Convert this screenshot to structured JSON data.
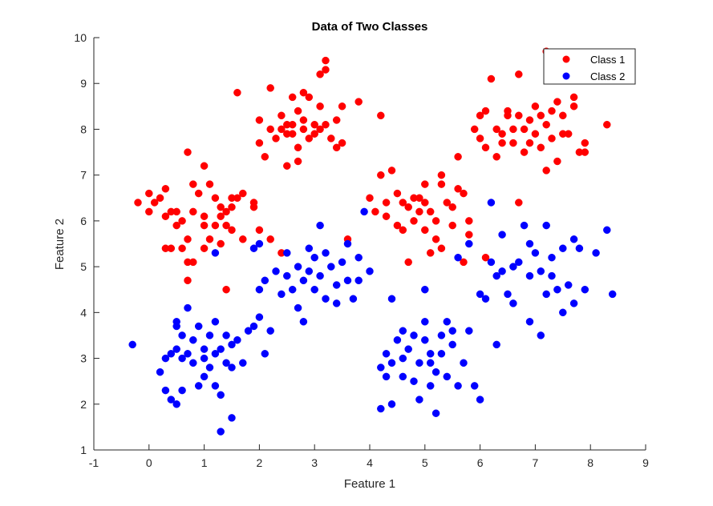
{
  "chart_data": {
    "type": "scatter",
    "title": "Data of Two Classes",
    "xlabel": "Feature 1",
    "ylabel": "Feature 2",
    "xlim": [
      -1,
      9
    ],
    "ylim": [
      1,
      10
    ],
    "xticks": [
      "-1",
      "0",
      "1",
      "2",
      "3",
      "4",
      "5",
      "6",
      "7",
      "8",
      "9"
    ],
    "yticks": [
      "1",
      "2",
      "3",
      "4",
      "5",
      "6",
      "7",
      "8",
      "9",
      "10"
    ],
    "grid": false,
    "legend": "top-right",
    "series": [
      {
        "name": "Class 1",
        "color": "#ff0000",
        "points": [
          [
            -0.2,
            6.4
          ],
          [
            0.0,
            6.2
          ],
          [
            0.0,
            6.6
          ],
          [
            0.1,
            6.4
          ],
          [
            0.2,
            6.5
          ],
          [
            0.3,
            6.1
          ],
          [
            0.3,
            6.7
          ],
          [
            0.3,
            5.4
          ],
          [
            0.4,
            6.2
          ],
          [
            0.4,
            5.4
          ],
          [
            0.5,
            6.2
          ],
          [
            0.5,
            5.9
          ],
          [
            0.6,
            5.4
          ],
          [
            0.6,
            6.0
          ],
          [
            0.7,
            7.5
          ],
          [
            0.7,
            5.1
          ],
          [
            0.7,
            4.7
          ],
          [
            0.7,
            5.6
          ],
          [
            0.8,
            6.2
          ],
          [
            0.8,
            6.8
          ],
          [
            0.8,
            5.1
          ],
          [
            0.9,
            6.6
          ],
          [
            1.0,
            6.1
          ],
          [
            1.0,
            7.2
          ],
          [
            1.0,
            5.4
          ],
          [
            1.0,
            5.9
          ],
          [
            1.1,
            6.8
          ],
          [
            1.1,
            5.6
          ],
          [
            1.2,
            6.5
          ],
          [
            1.2,
            5.9
          ],
          [
            1.3,
            6.3
          ],
          [
            1.3,
            6.1
          ],
          [
            1.3,
            5.5
          ],
          [
            1.4,
            6.2
          ],
          [
            1.4,
            4.5
          ],
          [
            1.4,
            5.9
          ],
          [
            1.5,
            6.5
          ],
          [
            1.5,
            6.3
          ],
          [
            1.5,
            5.8
          ],
          [
            1.6,
            8.8
          ],
          [
            1.6,
            6.5
          ],
          [
            1.7,
            5.6
          ],
          [
            1.7,
            6.6
          ],
          [
            1.9,
            6.4
          ],
          [
            1.9,
            6.3
          ],
          [
            2.0,
            5.8
          ],
          [
            2.2,
            5.6
          ],
          [
            2.0,
            7.7
          ],
          [
            2.0,
            8.2
          ],
          [
            2.1,
            7.4
          ],
          [
            2.2,
            8.9
          ],
          [
            2.2,
            8.0
          ],
          [
            2.3,
            7.8
          ],
          [
            2.4,
            8.3
          ],
          [
            2.4,
            8.0
          ],
          [
            2.5,
            8.1
          ],
          [
            2.5,
            7.9
          ],
          [
            2.5,
            7.2
          ],
          [
            2.6,
            8.1
          ],
          [
            2.6,
            7.9
          ],
          [
            2.6,
            8.7
          ],
          [
            2.7,
            8.4
          ],
          [
            2.7,
            7.6
          ],
          [
            2.7,
            7.3
          ],
          [
            2.8,
            8.0
          ],
          [
            2.8,
            8.8
          ],
          [
            2.8,
            8.2
          ],
          [
            2.9,
            8.7
          ],
          [
            2.9,
            7.8
          ],
          [
            3.0,
            8.1
          ],
          [
            3.0,
            7.9
          ],
          [
            3.1,
            8.5
          ],
          [
            3.1,
            8.0
          ],
          [
            3.1,
            9.2
          ],
          [
            3.2,
            9.5
          ],
          [
            3.2,
            8.1
          ],
          [
            3.2,
            9.3
          ],
          [
            3.3,
            7.8
          ],
          [
            3.4,
            7.6
          ],
          [
            3.4,
            8.2
          ],
          [
            3.5,
            8.5
          ],
          [
            3.5,
            7.7
          ],
          [
            3.6,
            5.6
          ],
          [
            3.8,
            8.6
          ],
          [
            2.4,
            5.3
          ],
          [
            4.2,
            8.3
          ],
          [
            4.0,
            6.5
          ],
          [
            4.1,
            6.2
          ],
          [
            4.2,
            7.0
          ],
          [
            4.3,
            6.1
          ],
          [
            4.3,
            6.4
          ],
          [
            4.4,
            7.1
          ],
          [
            4.5,
            6.6
          ],
          [
            4.5,
            5.9
          ],
          [
            4.6,
            6.4
          ],
          [
            4.6,
            5.8
          ],
          [
            4.7,
            6.3
          ],
          [
            4.7,
            5.1
          ],
          [
            4.8,
            6.5
          ],
          [
            4.8,
            6.0
          ],
          [
            4.9,
            6.5
          ],
          [
            4.9,
            6.2
          ],
          [
            5.0,
            6.4
          ],
          [
            5.0,
            5.8
          ],
          [
            5.0,
            6.8
          ],
          [
            5.1,
            6.2
          ],
          [
            5.1,
            5.3
          ],
          [
            5.2,
            6.0
          ],
          [
            5.2,
            5.6
          ],
          [
            5.3,
            7.0
          ],
          [
            5.3,
            6.8
          ],
          [
            5.3,
            5.4
          ],
          [
            5.4,
            6.4
          ],
          [
            5.5,
            6.3
          ],
          [
            5.5,
            5.9
          ],
          [
            5.6,
            6.7
          ],
          [
            5.6,
            7.4
          ],
          [
            5.7,
            5.1
          ],
          [
            5.7,
            6.6
          ],
          [
            5.8,
            6.0
          ],
          [
            5.8,
            5.7
          ],
          [
            5.9,
            8.0
          ],
          [
            6.0,
            8.3
          ],
          [
            6.0,
            7.8
          ],
          [
            6.1,
            8.4
          ],
          [
            6.1,
            7.6
          ],
          [
            6.2,
            9.1
          ],
          [
            6.3,
            8.0
          ],
          [
            6.3,
            7.4
          ],
          [
            6.4,
            7.7
          ],
          [
            6.4,
            7.9
          ],
          [
            6.5,
            8.3
          ],
          [
            6.5,
            8.4
          ],
          [
            6.6,
            8.0
          ],
          [
            6.6,
            7.7
          ],
          [
            6.7,
            8.3
          ],
          [
            6.7,
            9.2
          ],
          [
            6.8,
            8.0
          ],
          [
            6.8,
            7.5
          ],
          [
            6.9,
            8.2
          ],
          [
            6.9,
            7.7
          ],
          [
            7.0,
            8.5
          ],
          [
            7.0,
            7.9
          ],
          [
            7.1,
            8.3
          ],
          [
            7.1,
            7.6
          ],
          [
            7.2,
            8.1
          ],
          [
            7.2,
            7.1
          ],
          [
            7.3,
            8.4
          ],
          [
            7.3,
            7.8
          ],
          [
            7.4,
            8.6
          ],
          [
            7.4,
            7.3
          ],
          [
            7.5,
            8.3
          ],
          [
            7.5,
            7.9
          ],
          [
            7.6,
            7.9
          ],
          [
            7.7,
            8.7
          ],
          [
            7.7,
            8.5
          ],
          [
            7.8,
            7.5
          ],
          [
            7.9,
            7.7
          ],
          [
            7.9,
            7.5
          ],
          [
            8.3,
            8.1
          ],
          [
            6.1,
            5.2
          ],
          [
            6.7,
            6.4
          ],
          [
            7.2,
            9.7
          ]
        ]
      },
      {
        "name": "Class 2",
        "color": "#0000ff",
        "points": [
          [
            -0.3,
            3.3
          ],
          [
            0.2,
            2.7
          ],
          [
            0.3,
            3.0
          ],
          [
            0.3,
            2.3
          ],
          [
            0.4,
            3.1
          ],
          [
            0.4,
            2.1
          ],
          [
            0.5,
            3.8
          ],
          [
            0.5,
            3.2
          ],
          [
            0.5,
            2.0
          ],
          [
            0.5,
            3.7
          ],
          [
            0.6,
            3.5
          ],
          [
            0.6,
            3.0
          ],
          [
            0.6,
            2.3
          ],
          [
            0.7,
            3.1
          ],
          [
            0.7,
            4.1
          ],
          [
            0.8,
            3.4
          ],
          [
            0.8,
            2.9
          ],
          [
            0.9,
            3.7
          ],
          [
            0.9,
            2.4
          ],
          [
            1.0,
            3.2
          ],
          [
            1.0,
            2.6
          ],
          [
            1.0,
            3.0
          ],
          [
            1.1,
            2.8
          ],
          [
            1.1,
            3.5
          ],
          [
            1.2,
            3.1
          ],
          [
            1.2,
            2.4
          ],
          [
            1.2,
            3.8
          ],
          [
            1.3,
            3.2
          ],
          [
            1.3,
            2.2
          ],
          [
            1.3,
            1.4
          ],
          [
            1.4,
            2.9
          ],
          [
            1.4,
            3.5
          ],
          [
            1.5,
            3.3
          ],
          [
            1.5,
            1.7
          ],
          [
            1.5,
            2.8
          ],
          [
            1.6,
            3.4
          ],
          [
            1.7,
            2.9
          ],
          [
            1.8,
            3.6
          ],
          [
            1.9,
            3.7
          ],
          [
            2.0,
            4.5
          ],
          [
            2.0,
            5.5
          ],
          [
            2.1,
            4.7
          ],
          [
            2.1,
            3.1
          ],
          [
            2.2,
            3.6
          ],
          [
            2.3,
            4.9
          ],
          [
            2.4,
            4.4
          ],
          [
            2.5,
            4.8
          ],
          [
            2.5,
            5.3
          ],
          [
            2.6,
            4.5
          ],
          [
            2.7,
            5.0
          ],
          [
            2.7,
            4.1
          ],
          [
            2.8,
            4.7
          ],
          [
            2.8,
            3.8
          ],
          [
            2.9,
            5.4
          ],
          [
            2.9,
            4.9
          ],
          [
            3.0,
            4.5
          ],
          [
            3.0,
            5.2
          ],
          [
            3.1,
            5.9
          ],
          [
            3.1,
            4.8
          ],
          [
            3.2,
            5.3
          ],
          [
            3.2,
            4.3
          ],
          [
            3.3,
            5.0
          ],
          [
            3.4,
            4.6
          ],
          [
            3.4,
            4.2
          ],
          [
            3.5,
            5.1
          ],
          [
            3.6,
            4.7
          ],
          [
            3.7,
            4.3
          ],
          [
            3.8,
            5.2
          ],
          [
            3.8,
            4.7
          ],
          [
            3.9,
            6.2
          ],
          [
            1.2,
            5.3
          ],
          [
            1.9,
            5.4
          ],
          [
            2.0,
            3.9
          ],
          [
            3.6,
            5.5
          ],
          [
            4.2,
            2.8
          ],
          [
            4.2,
            1.9
          ],
          [
            4.3,
            3.1
          ],
          [
            4.3,
            2.6
          ],
          [
            4.4,
            2.0
          ],
          [
            4.4,
            2.9
          ],
          [
            4.5,
            3.4
          ],
          [
            4.6,
            3.0
          ],
          [
            4.6,
            2.6
          ],
          [
            4.7,
            3.2
          ],
          [
            4.8,
            2.5
          ],
          [
            4.8,
            3.5
          ],
          [
            4.9,
            2.9
          ],
          [
            4.9,
            2.1
          ],
          [
            5.0,
            3.8
          ],
          [
            5.0,
            3.4
          ],
          [
            5.1,
            2.9
          ],
          [
            5.1,
            2.4
          ],
          [
            5.1,
            3.1
          ],
          [
            5.2,
            2.7
          ],
          [
            5.2,
            1.8
          ],
          [
            5.3,
            3.5
          ],
          [
            5.3,
            3.1
          ],
          [
            5.4,
            2.6
          ],
          [
            5.5,
            3.6
          ],
          [
            5.5,
            3.3
          ],
          [
            5.6,
            2.4
          ],
          [
            5.7,
            2.9
          ],
          [
            5.8,
            3.6
          ],
          [
            5.9,
            2.4
          ],
          [
            6.0,
            2.1
          ],
          [
            6.0,
            4.4
          ],
          [
            6.1,
            4.3
          ],
          [
            6.2,
            5.1
          ],
          [
            6.3,
            4.8
          ],
          [
            6.4,
            5.7
          ],
          [
            6.4,
            4.9
          ],
          [
            6.5,
            4.4
          ],
          [
            6.6,
            5.0
          ],
          [
            6.6,
            4.2
          ],
          [
            6.7,
            5.1
          ],
          [
            6.8,
            5.9
          ],
          [
            6.9,
            5.5
          ],
          [
            6.9,
            4.8
          ],
          [
            7.0,
            5.3
          ],
          [
            7.1,
            4.9
          ],
          [
            7.2,
            5.9
          ],
          [
            7.2,
            4.4
          ],
          [
            7.3,
            5.2
          ],
          [
            7.3,
            4.8
          ],
          [
            7.4,
            4.5
          ],
          [
            7.5,
            5.4
          ],
          [
            7.5,
            4.0
          ],
          [
            7.6,
            4.6
          ],
          [
            7.7,
            5.6
          ],
          [
            7.7,
            4.2
          ],
          [
            7.8,
            5.4
          ],
          [
            7.9,
            4.5
          ],
          [
            8.1,
            5.3
          ],
          [
            8.3,
            5.8
          ],
          [
            8.4,
            4.4
          ],
          [
            6.2,
            6.4
          ],
          [
            5.8,
            5.5
          ],
          [
            6.3,
            3.3
          ],
          [
            6.9,
            3.8
          ],
          [
            7.1,
            3.5
          ],
          [
            4.0,
            4.9
          ],
          [
            4.4,
            4.3
          ],
          [
            4.6,
            3.6
          ],
          [
            5.0,
            4.5
          ],
          [
            5.4,
            3.8
          ],
          [
            5.6,
            5.2
          ]
        ]
      }
    ]
  }
}
